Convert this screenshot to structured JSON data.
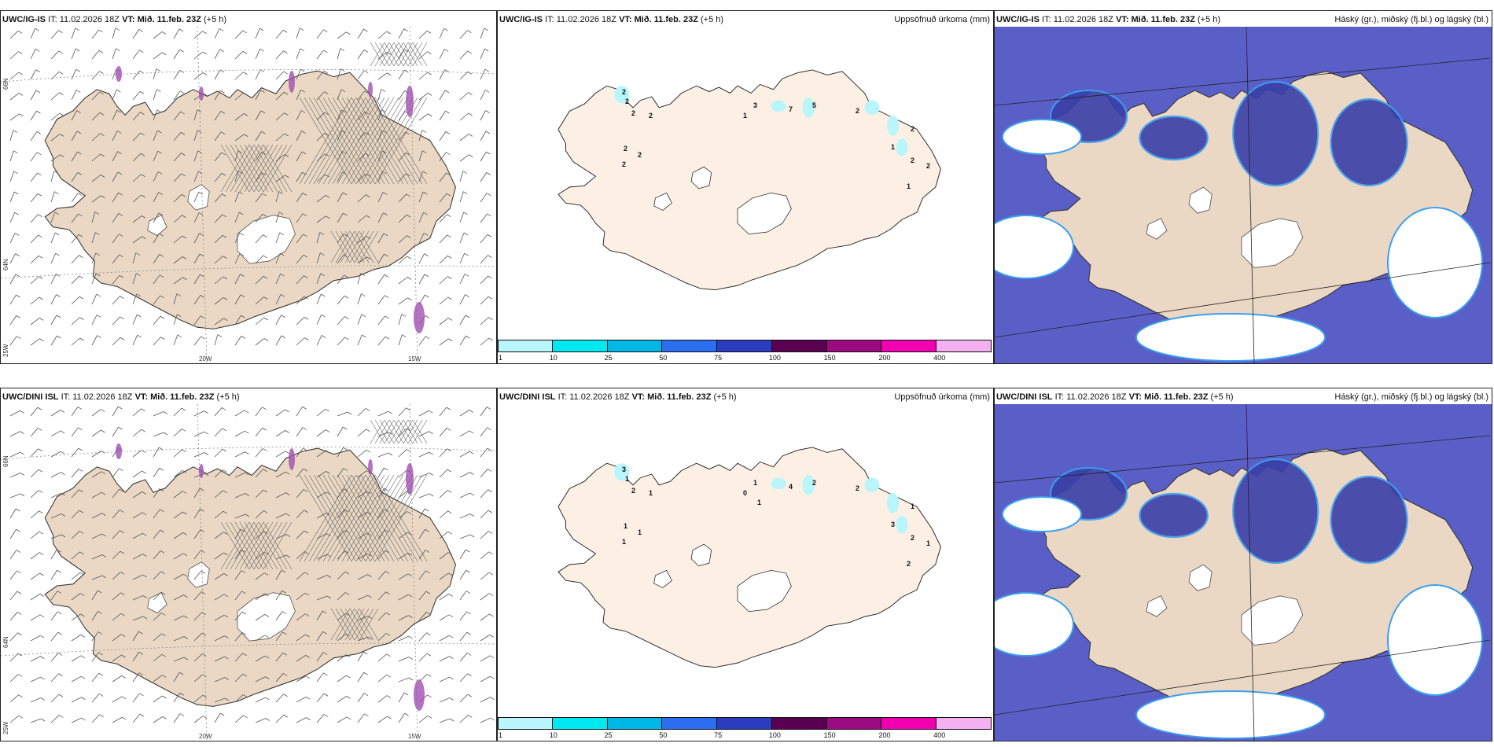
{
  "rows": [
    {
      "model": "UWC/IG-IS",
      "it_label": "IT:",
      "it_value": "11.02.2026 18Z",
      "vt_label": "VT:",
      "vt_value": "Mið. 11.feb. 23Z",
      "lead": "(+5 h)",
      "precip_title": "Uppsöfnuð úrkoma (mm)",
      "cloud_title": "Háský (gr.), miðský (fj.bl.) og lágský (bl.)",
      "precip_numbers": [
        "2",
        "2",
        "2",
        "2",
        "2",
        "2",
        "2",
        "3",
        "1",
        "7",
        "5",
        "2",
        "2",
        "1",
        "2",
        "2",
        "1"
      ]
    },
    {
      "model": "UWC/DINI ISL",
      "it_label": "IT:",
      "it_value": "11.02.2026 18Z",
      "vt_label": "VT:",
      "vt_value": "Mið. 11.feb. 23Z",
      "lead": "(+5 h)",
      "precip_title": "Uppsöfnuð úrkoma (mm)",
      "cloud_title": "Háský (gr.), miðský (fj.bl.) og lágský (bl.)",
      "precip_numbers": [
        "3",
        "1",
        "2",
        "1",
        "1",
        "1",
        "1",
        "1",
        "0",
        "4",
        "2",
        "2",
        "1",
        "3",
        "2",
        "1",
        "2",
        "1"
      ]
    }
  ],
  "axis_labels": {
    "lat_66": "66N",
    "lat_64": "64N",
    "lon_25": "25W",
    "lon_20": "20W",
    "lon_15": "15W"
  },
  "legend": {
    "ticks": [
      "1",
      "10",
      "25",
      "50",
      "75",
      "100",
      "150",
      "200",
      "400"
    ],
    "colors": [
      "#b8f6fb",
      "#00e8f0",
      "#00b8e8",
      "#2b6ef0",
      "#2a3cc0",
      "#5a0050",
      "#9c0a80",
      "#f000b0",
      "#f4b0f0"
    ]
  },
  "colors": {
    "land": "#ead8c4",
    "land_light": "#fcf0e4",
    "cloud_blue": "#5a5fc8",
    "cloud_mid": "#3a3fa8",
    "cloud_edge": "#3aa0f0"
  }
}
